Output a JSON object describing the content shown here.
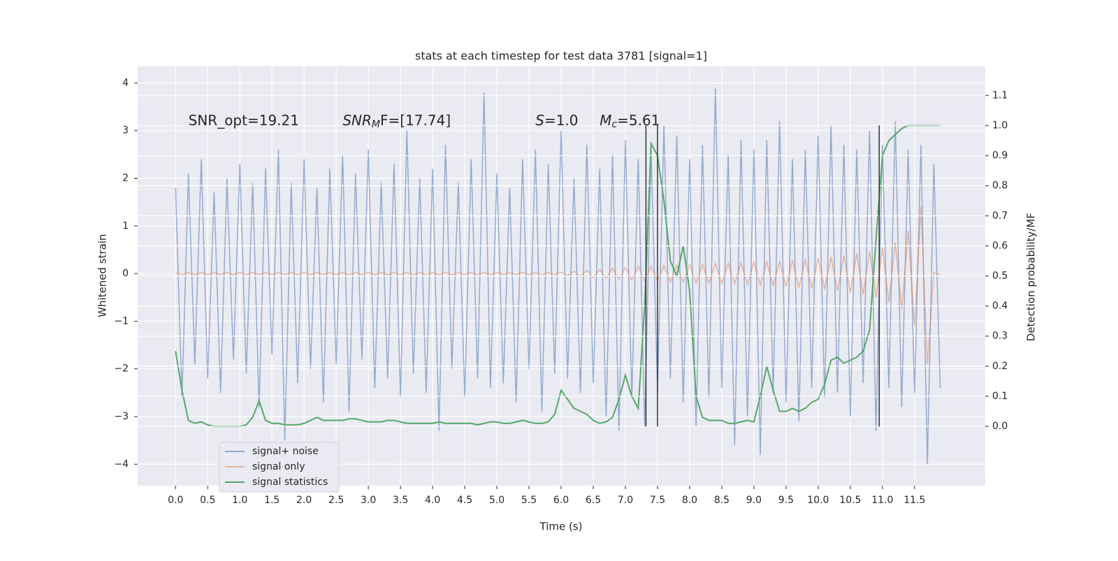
{
  "chart_data": {
    "type": "line",
    "title": "stats at each timestep for test data 3781 [signal=1]",
    "xlabel": "Time (s)",
    "ylabel": "Whitened strain",
    "y2label": "Detection probability/MF",
    "xlim": [
      -0.59,
      12.6
    ],
    "ylim": [
      -4.45,
      4.35
    ],
    "y2lim": [
      -0.197,
      1.197
    ],
    "xticks": [
      {
        "value": 0,
        "label": "0.0"
      },
      0.5,
      {
        "value": 1,
        "label": "1.0"
      },
      1.5,
      {
        "value": 2,
        "label": "2.0"
      },
      2.5,
      {
        "value": 3,
        "label": "3.0"
      },
      3.5,
      {
        "value": 4,
        "label": "4.0"
      },
      4.5,
      {
        "value": 5,
        "label": "5.0"
      },
      5.5,
      {
        "value": 6,
        "label": "6.0"
      },
      6.5,
      {
        "value": 7,
        "label": "7.0"
      },
      7.5,
      {
        "value": 8,
        "label": "8.0"
      },
      8.5,
      {
        "value": 9,
        "label": "9.0"
      },
      9.5,
      {
        "value": 10,
        "label": "10.0"
      },
      10.5,
      {
        "value": 11,
        "label": "11.0"
      },
      11.5
    ],
    "yticks": [
      {
        "value": -4,
        "label": "−4"
      },
      {
        "value": -3,
        "label": "−3"
      },
      {
        "value": -2,
        "label": "−2"
      },
      {
        "value": -1,
        "label": "−1"
      },
      0,
      1,
      2,
      3,
      4
    ],
    "y2ticks": [
      {
        "value": 0,
        "label": "0.0"
      },
      0.1,
      0.2,
      0.3,
      0.4,
      0.5,
      0.6,
      0.7,
      0.8,
      0.9,
      {
        "value": 1,
        "label": "1.0"
      },
      1.1
    ],
    "grid": true,
    "legend": "lower left",
    "x": [
      0,
      0.1,
      0.2,
      0.3,
      0.4,
      0.5,
      0.6,
      0.7,
      0.8,
      0.9,
      1,
      1.1,
      1.2,
      1.3,
      1.4,
      1.5,
      1.6,
      1.7,
      1.8,
      1.9,
      2,
      2.1,
      2.2,
      2.3,
      2.4,
      2.5,
      2.6,
      2.7,
      2.8,
      2.9,
      3,
      3.1,
      3.2,
      3.3,
      3.4,
      3.5,
      3.6,
      3.7,
      3.8,
      3.9,
      4,
      4.1,
      4.2,
      4.3,
      4.4,
      4.5,
      4.6,
      4.7,
      4.8,
      4.9,
      5,
      5.1,
      5.2,
      5.3,
      5.4,
      5.5,
      5.6,
      5.7,
      5.8,
      5.9,
      6,
      6.1,
      6.2,
      6.3,
      6.4,
      6.5,
      6.6,
      6.7,
      6.8,
      6.9,
      7,
      7.1,
      7.2,
      7.3,
      7.4,
      7.5,
      7.6,
      7.7,
      7.8,
      7.9,
      8,
      8.1,
      8.2,
      8.3,
      8.4,
      8.5,
      8.6,
      8.7,
      8.8,
      8.9,
      9,
      9.1,
      9.2,
      9.3,
      9.4,
      9.5,
      9.6,
      9.7,
      9.8,
      9.9,
      10,
      10.1,
      10.2,
      10.3,
      10.4,
      10.5,
      10.6,
      10.7,
      10.8,
      10.9,
      11,
      11.1,
      11.2,
      11.3,
      11.4,
      11.5,
      11.6,
      11.7,
      11.8,
      11.9
    ],
    "series": [
      {
        "name": "signal+ noise",
        "color": "#4c72b0",
        "values": [
          1.8,
          -2.6,
          2.1,
          -1.9,
          2.4,
          -2.2,
          1.7,
          -2.5,
          2.0,
          -1.8,
          2.3,
          -2.1,
          1.9,
          -2.8,
          2.2,
          -1.7,
          2.6,
          -3.5,
          1.9,
          -2.3,
          2.4,
          -2.0,
          1.8,
          -2.7,
          2.2,
          -1.9,
          2.5,
          -2.9,
          2.1,
          -1.8,
          2.6,
          -2.4,
          1.9,
          -2.2,
          2.3,
          -2.6,
          3.0,
          -2.1,
          2.0,
          -2.5,
          2.2,
          -3.3,
          2.7,
          -2.0,
          1.9,
          -2.6,
          2.4,
          -2.2,
          3.8,
          -2.4,
          2.1,
          -2.3,
          1.8,
          -2.7,
          2.4,
          -2.0,
          2.6,
          -2.9,
          2.3,
          -2.1,
          3.0,
          -2.2,
          2.0,
          -2.5,
          2.7,
          -2.3,
          2.2,
          -3.0,
          2.5,
          -3.3,
          2.8,
          -2.6,
          2.4,
          -3.2,
          2.6,
          -2.5,
          3.1,
          -2.2,
          2.9,
          -2.7,
          2.4,
          -3.2,
          2.7,
          -2.6,
          3.9,
          -2.4,
          2.5,
          -3.6,
          2.8,
          -3.0,
          2.6,
          -3.8,
          2.8,
          -2.5,
          3.2,
          -2.7,
          2.4,
          -3.1,
          2.6,
          -2.4,
          2.9,
          -2.6,
          3.1,
          -2.5,
          2.7,
          -3.0,
          2.6,
          -2.3,
          3.0,
          -3.3,
          2.7,
          -2.4,
          3.2,
          -2.8,
          2.6,
          -2.5,
          2.7,
          -4.0,
          2.3,
          -2.4
        ]
      },
      {
        "name": "signal only",
        "color": "#dd8452",
        "values": [
          0.02,
          -0.02,
          0.02,
          -0.02,
          0.02,
          -0.02,
          0.02,
          -0.02,
          0.02,
          -0.02,
          0.02,
          -0.02,
          0.02,
          -0.02,
          0.02,
          -0.02,
          0.02,
          -0.02,
          0.02,
          -0.02,
          0.02,
          -0.02,
          0.02,
          -0.02,
          0.02,
          -0.02,
          0.02,
          -0.02,
          0.02,
          -0.02,
          0.02,
          -0.02,
          0.02,
          -0.02,
          0.02,
          -0.02,
          0.02,
          -0.02,
          0.02,
          -0.02,
          0.02,
          -0.02,
          0.02,
          -0.02,
          0.02,
          -0.02,
          0.02,
          -0.02,
          0.02,
          -0.02,
          0.02,
          -0.02,
          0.02,
          -0.02,
          0.02,
          -0.02,
          0.02,
          -0.02,
          0.02,
          -0.02,
          0.03,
          -0.04,
          0.05,
          -0.06,
          0.07,
          -0.08,
          0.09,
          -0.1,
          0.11,
          -0.12,
          0.13,
          -0.14,
          0.15,
          -0.15,
          0.16,
          -0.16,
          0.17,
          -0.17,
          0.18,
          -0.18,
          0.19,
          -0.19,
          0.2,
          -0.2,
          0.21,
          -0.21,
          0.22,
          -0.22,
          0.23,
          -0.23,
          0.24,
          -0.24,
          0.25,
          -0.25,
          0.26,
          -0.27,
          0.28,
          -0.29,
          0.3,
          -0.31,
          0.32,
          -0.33,
          0.35,
          -0.36,
          0.38,
          -0.4,
          0.42,
          -0.44,
          0.47,
          -0.5,
          0.54,
          -0.6,
          0.66,
          -0.75,
          0.9,
          -1.1,
          1.4,
          -1.9,
          0.02,
          -0.02
        ]
      },
      {
        "name": "signal statistics",
        "color": "#55a868",
        "axis": "y2",
        "values": [
          0.25,
          0.12,
          0.02,
          0.01,
          0.015,
          0.005,
          0,
          0,
          0,
          0,
          0,
          0.005,
          0.03,
          0.085,
          0.02,
          0.01,
          0.01,
          0.005,
          0.005,
          0.005,
          0.01,
          0.02,
          0.03,
          0.02,
          0.02,
          0.02,
          0.02,
          0.025,
          0.025,
          0.02,
          0.015,
          0.015,
          0.015,
          0.02,
          0.02,
          0.015,
          0.01,
          0.01,
          0.01,
          0.01,
          0.01,
          0.015,
          0.01,
          0.01,
          0.01,
          0.01,
          0.01,
          0.005,
          0.01,
          0.015,
          0.015,
          0.01,
          0.01,
          0.015,
          0.02,
          0.015,
          0.01,
          0.01,
          0.015,
          0.04,
          0.12,
          0.09,
          0.06,
          0.05,
          0.04,
          0.02,
          0.01,
          0.015,
          0.03,
          0.09,
          0.17,
          0.1,
          0.06,
          0.4,
          0.94,
          0.9,
          0.75,
          0.55,
          0.5,
          0.6,
          0.45,
          0.1,
          0.03,
          0.02,
          0.02,
          0.02,
          0.01,
          0.01,
          0.015,
          0.02,
          0.015,
          0.1,
          0.2,
          0.12,
          0.05,
          0.05,
          0.06,
          0.05,
          0.06,
          0.08,
          0.09,
          0.14,
          0.22,
          0.23,
          0.21,
          0.22,
          0.23,
          0.25,
          0.32,
          0.62,
          0.9,
          0.95,
          0.97,
          0.99,
          1,
          1,
          1,
          1,
          1,
          1
        ]
      }
    ],
    "vlines": {
      "x": [
        7.32,
        7.5,
        10.95
      ],
      "ymin": 0,
      "ymax": 1,
      "axis": "y2",
      "color": "#333333"
    },
    "annotations": [
      {
        "x": 0.2,
        "y": 3.2,
        "italic": false,
        "base": "SNR_opt=19.21"
      },
      {
        "x": 2.6,
        "y": 3.2,
        "italic": true,
        "base": "SNR",
        "sub": "M",
        "rest": "F=[17.74]"
      },
      {
        "x": 5.6,
        "y": 3.2,
        "italic": true,
        "base": "S",
        "rest": "=1.0"
      },
      {
        "x": 6.6,
        "y": 3.2,
        "italic": true,
        "base": "M",
        "sub": "c",
        "rest": "=5.61"
      }
    ]
  }
}
